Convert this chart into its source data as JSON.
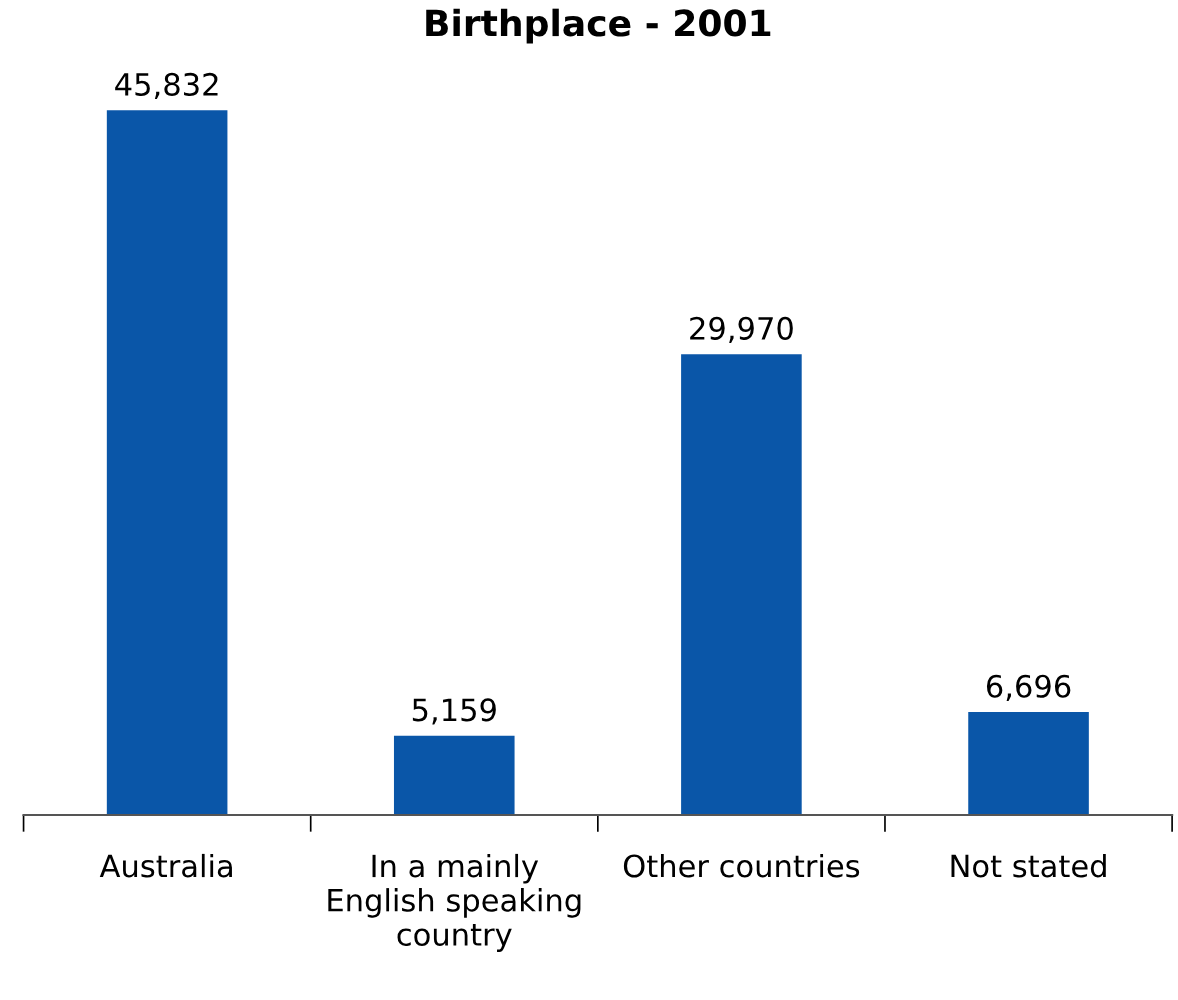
{
  "chart_data": {
    "type": "bar",
    "title": "Birthplace - 2001",
    "categories": [
      "Australia",
      "In a mainly\nEnglish speaking\ncountry",
      "Other countries",
      "Not stated"
    ],
    "values": [
      45832,
      5159,
      29970,
      6696
    ],
    "color": "#0a56a8",
    "data_labels": true,
    "value_labels": [
      "45,832",
      "5,159",
      "29,970",
      "6,696"
    ]
  }
}
